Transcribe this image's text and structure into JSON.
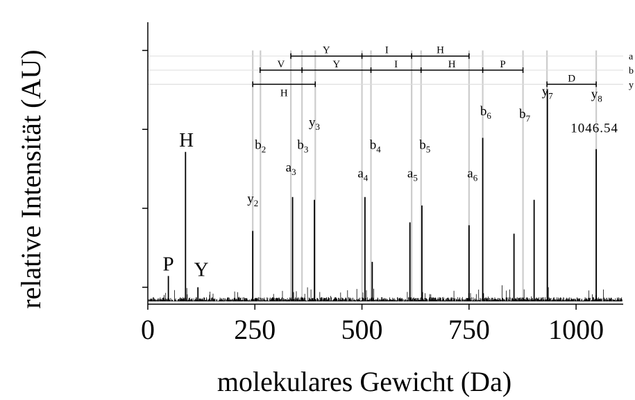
{
  "chart_data": {
    "type": "mass-spectrum",
    "xlabel": "molekulares Gewicht (Da)",
    "ylabel": "relative Intensität (AU)",
    "xlim": [
      0,
      1110
    ],
    "ylim": [
      0,
      1.0
    ],
    "x_ticks": [
      "0",
      "250",
      "500",
      "750",
      "1000"
    ],
    "x_tick_values": [
      0,
      250,
      500,
      750,
      1000
    ],
    "y_tick_values": [
      0.06,
      0.34,
      0.62,
      0.9
    ],
    "colors": {
      "peaks": "#000000",
      "guides": "#cccccc",
      "axes": "#000000"
    },
    "immonium_labels": [
      {
        "text": "P",
        "x": 48,
        "y": 0.1
      },
      {
        "text": "H",
        "x": 90,
        "y": 0.54
      },
      {
        "text": "Y",
        "x": 125,
        "y": 0.08
      }
    ],
    "peaks": [
      {
        "x": 48,
        "y": 0.1
      },
      {
        "x": 88,
        "y": 0.54
      },
      {
        "x": 117,
        "y": 0.06
      },
      {
        "x": 245,
        "y": 0.26
      },
      {
        "x": 338,
        "y": 0.38
      },
      {
        "x": 389,
        "y": 0.37
      },
      {
        "x": 507,
        "y": 0.38
      },
      {
        "x": 524,
        "y": 0.15
      },
      {
        "x": 612,
        "y": 0.29
      },
      {
        "x": 640,
        "y": 0.35
      },
      {
        "x": 750,
        "y": 0.28
      },
      {
        "x": 782,
        "y": 0.59
      },
      {
        "x": 855,
        "y": 0.25
      },
      {
        "x": 902,
        "y": 0.37
      },
      {
        "x": 933,
        "y": 0.76
      },
      {
        "x": 1047,
        "y": 0.55
      }
    ],
    "ion_labels": [
      {
        "ion": "y",
        "num": "2",
        "x": 245,
        "y": 0.36
      },
      {
        "ion": "b",
        "num": "2",
        "x": 263,
        "y": 0.55
      },
      {
        "ion": "a",
        "num": "3",
        "x": 334,
        "y": 0.47
      },
      {
        "ion": "b",
        "num": "3",
        "x": 362,
        "y": 0.55
      },
      {
        "ion": "y",
        "num": "3",
        "x": 389,
        "y": 0.63
      },
      {
        "ion": "a",
        "num": "4",
        "x": 502,
        "y": 0.45
      },
      {
        "ion": "b",
        "num": "4",
        "x": 531,
        "y": 0.55
      },
      {
        "ion": "a",
        "num": "5",
        "x": 618,
        "y": 0.45
      },
      {
        "ion": "b",
        "num": "5",
        "x": 647,
        "y": 0.55
      },
      {
        "ion": "a",
        "num": "6",
        "x": 758,
        "y": 0.45
      },
      {
        "ion": "b",
        "num": "6",
        "x": 789,
        "y": 0.67
      },
      {
        "ion": "b",
        "num": "7",
        "x": 880,
        "y": 0.66
      },
      {
        "ion": "y",
        "num": "7",
        "x": 933,
        "y": 0.74
      },
      {
        "ion": "y",
        "num": "8",
        "x": 1048,
        "y": 0.73
      }
    ],
    "mass_label": {
      "text": "1046.54",
      "x": 1043,
      "y": 0.61
    },
    "sequence_ladders": [
      {
        "series": "a",
        "y": 0.88,
        "points": [
          334,
          500,
          616,
          750
        ],
        "residues": [
          "Y",
          "I",
          "H"
        ]
      },
      {
        "series": "b",
        "y": 0.83,
        "points": [
          262,
          360,
          521,
          638,
          782,
          876
        ],
        "residues": [
          "V",
          "Y",
          "I",
          "H",
          "P"
        ]
      },
      {
        "series": "y",
        "y": 0.78,
        "points": [
          245,
          391
        ],
        "residues": [
          "H"
        ]
      },
      {
        "series": "",
        "y": 0.78,
        "points": [
          932,
          1047
        ],
        "residues": [
          "D"
        ]
      }
    ],
    "ladder_series_labels": [
      "a",
      "b",
      "y"
    ],
    "guide_lines": [
      245,
      263,
      334,
      360,
      391,
      500,
      521,
      616,
      638,
      750,
      782,
      876,
      932,
      1047
    ]
  }
}
